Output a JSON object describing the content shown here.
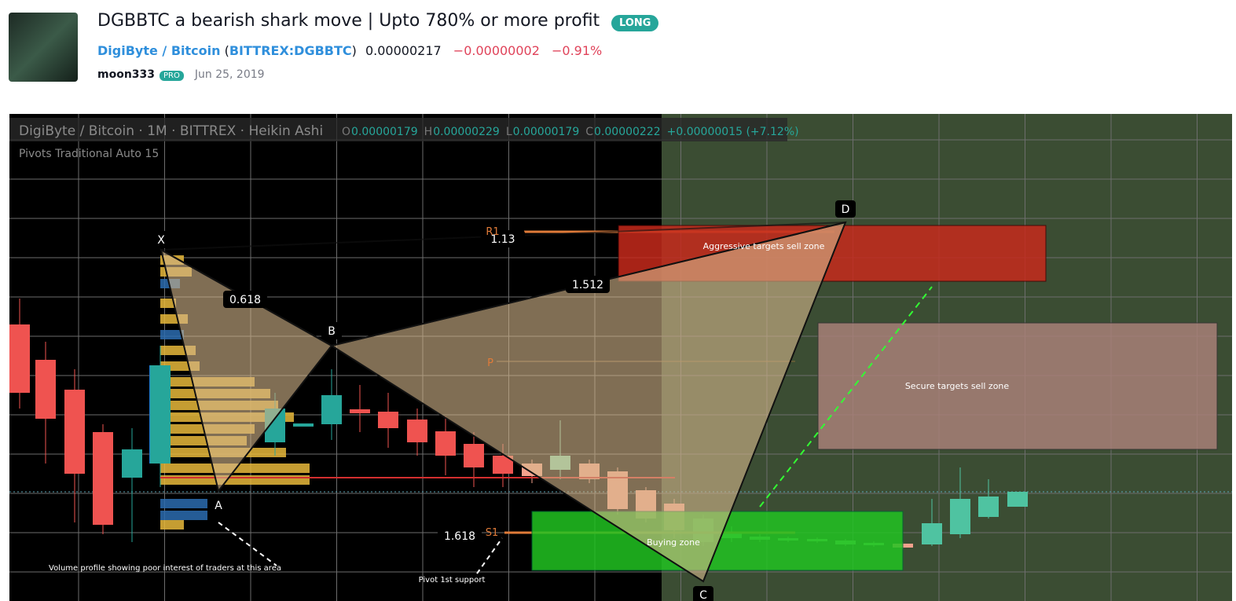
{
  "header": {
    "title": "DGBBTC a bearish shark move | Upto 780% or more profit",
    "badge": "LONG",
    "symbol": {
      "name": "DigiByte / Bitcoin",
      "open": "(",
      "exchange": "BITTREX:DGBBTC",
      "close": ")"
    },
    "price": "0.00000217",
    "change": "−0.00000002",
    "change_pct": "−0.91%",
    "author": "moon333",
    "author_badge": "PRO",
    "date": "Jun 25, 2019"
  },
  "chart": {
    "legend": "DigiByte / Bitcoin · 1M · BITTREX · Heikin Ashi",
    "ohlc": [
      {
        "key": "O",
        "value": "0.00000179"
      },
      {
        "key": "H",
        "value": "0.00000229"
      },
      {
        "key": "L",
        "value": "0.00000179"
      },
      {
        "key": "C",
        "value": "0.00000222"
      }
    ],
    "change": "+0.00000015 (+7.12%)",
    "indicator": "Pivots Traditional Auto 15",
    "points": [
      "X",
      "A",
      "B",
      "C",
      "D"
    ],
    "ratios": [
      "0.618",
      "1.13",
      "1.512",
      "1.618"
    ],
    "pivots": [
      "R1",
      "P",
      "S1"
    ],
    "zones": [
      "Aggressive targets sell zone",
      "Secure targets sell zone",
      "Buying zone"
    ],
    "notes": [
      "Volume profile showing poor interest of traders at this area",
      "Pivot 1st support"
    ]
  }
}
